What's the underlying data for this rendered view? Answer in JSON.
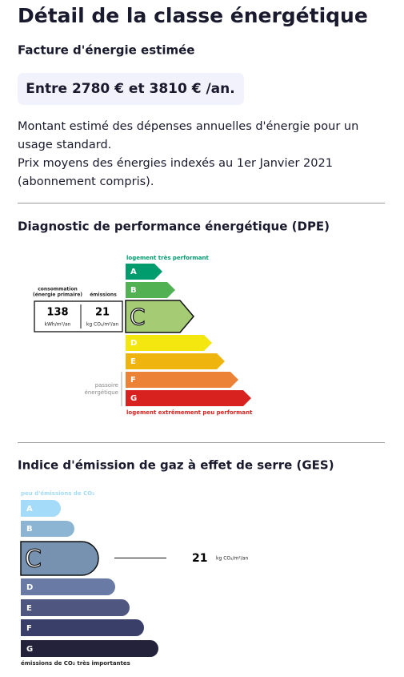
{
  "title": "Détail de la classe énergétique",
  "cost": {
    "heading": "Facture d'énergie estimée",
    "range": "Entre 2780 € et 3810 € /an.",
    "notes": [
      [
        "Montant estimé des dépenses annuelles d'énergie pour un",
        "usage standard."
      ],
      [
        "Prix moyens des énergies indexés au 1er Janvier 2021",
        "(abonnement compris)."
      ]
    ]
  },
  "dpe": {
    "heading": "Diagnostic de performance énergétique (DPE)",
    "top_label": "logement très performant",
    "bottom_label": "logement extrêmement peu performant",
    "classes": [
      "A",
      "B",
      "C",
      "D",
      "E",
      "F",
      "G"
    ],
    "consumption_label": [
      "consommation",
      "(énergie primaire)"
    ],
    "emissions_label": "émissions",
    "consumption": "138",
    "consumption_unit": "kWh/m²/an",
    "emissions": "21",
    "emissions_unit": "kg CO₂/m²/an",
    "passoire": [
      "passoire",
      "énergétique"
    ]
  },
  "ges": {
    "heading": "Indice d'émission de gaz à effet de serre (GES)",
    "top_label": "peu d'émissions de CO₂",
    "bottom_label": "émissions de CO₂ très importantes",
    "classes": [
      "A",
      "B",
      "C",
      "D",
      "E",
      "F",
      "G"
    ],
    "value": "21",
    "unit": "kg CO₂/m²/an"
  }
}
